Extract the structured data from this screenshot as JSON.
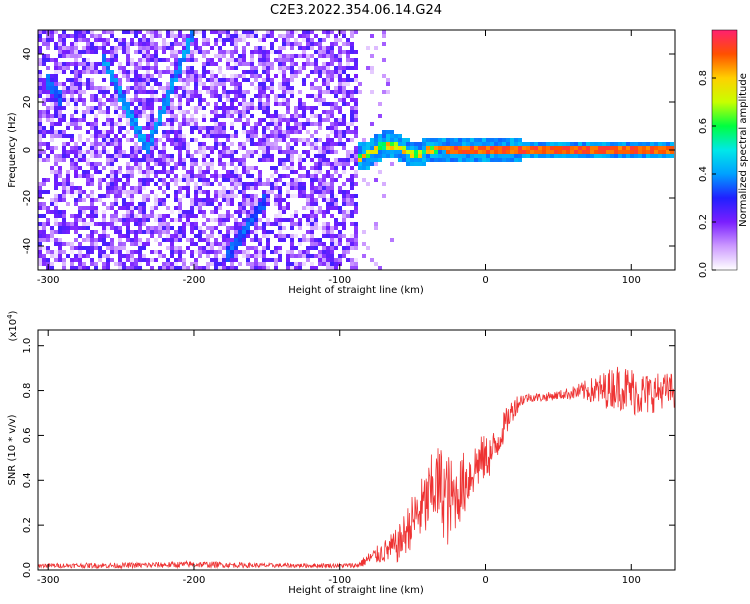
{
  "figure": {
    "title": "C2E3.2022.354.06.14.G24"
  },
  "colors": {
    "snr_line": "#ee3333",
    "axis": "#000000",
    "colormap": [
      "#ffffff",
      "#cc99ff",
      "#7a1fff",
      "#2020ff",
      "#00a0ff",
      "#00e8e8",
      "#00ff40",
      "#c8ff00",
      "#ffd000",
      "#ff5000",
      "#ff2070"
    ]
  },
  "chart_data": [
    {
      "type": "heatmap",
      "xlabel": "Height of straight line (km)",
      "ylabel": "Frequency (Hz)",
      "xlim": [
        -307,
        130
      ],
      "ylim": [
        -50,
        50
      ],
      "xticks": [
        -300,
        -200,
        -100,
        0,
        100
      ],
      "yticks": [
        -40,
        -20,
        0,
        20,
        40
      ],
      "xtick_labels": [
        "-300",
        "-200",
        "-100",
        "0",
        "100"
      ],
      "ytick_labels": [
        "-40",
        "-20",
        "0",
        "20",
        "40"
      ],
      "colorbar": {
        "label": "Normalized spectral amplitude",
        "range": [
          0.0,
          1.0
        ],
        "ticks": [
          0.0,
          0.2,
          0.4,
          0.6,
          0.8
        ],
        "tick_labels": [
          "0.0",
          "0.2",
          "0.4",
          "0.6",
          "0.8"
        ]
      },
      "features": {
        "noise_region_x": [
          -307,
          -88
        ],
        "noise_amplitude": 0.25,
        "line_segments": [
          {
            "x": [
              -262,
              -232
            ],
            "y": [
              38,
              0
            ],
            "amplitude": 0.35
          },
          {
            "x": [
              -232,
              -200
            ],
            "y": [
              0,
              50
            ],
            "amplitude": 0.35
          },
          {
            "x": [
              -178,
              -150
            ],
            "y": [
              -45,
              -20
            ],
            "amplitude": 0.3
          },
          {
            "x": [
              -302,
              -290
            ],
            "y": [
              30,
              20
            ],
            "amplitude": 0.3
          }
        ],
        "signal_band": {
          "x_range": [
            -88,
            130
          ],
          "center_hz": 0,
          "core_amplitude": 0.95,
          "halo_amplitude": 0.35,
          "halo_width_hz": [
            6,
            2.5
          ],
          "start_center_hz": [
            3,
            1
          ]
        }
      }
    },
    {
      "type": "line",
      "xlabel": "Height of straight line (km)",
      "ylabel": "SNR (10 * v/v)",
      "yscale_label": "(x10",
      "yscale_exponent": "4",
      "xlim": [
        -307,
        130
      ],
      "ylim": [
        0,
        1.07
      ],
      "xticks": [
        -300,
        -200,
        -100,
        0,
        100
      ],
      "yticks": [
        0.0,
        0.2,
        0.4,
        0.6,
        0.8,
        1.0
      ],
      "xtick_labels": [
        "-300",
        "-200",
        "-100",
        "0",
        "100"
      ],
      "ytick_labels": [
        "0.0",
        "0.2",
        "0.4",
        "0.6",
        "0.8",
        "1.0"
      ],
      "series": [
        {
          "x": [
            -307,
            -250,
            -200,
            -150,
            -100,
            -88,
            -80,
            -70,
            -60,
            -50,
            -40,
            -35,
            -30,
            -25,
            -20,
            -15,
            -10,
            -5,
            0,
            5,
            10,
            15,
            20,
            25,
            30,
            40,
            50,
            60,
            70,
            80,
            90,
            100,
            110,
            120,
            130
          ],
          "values": [
            0.02,
            0.02,
            0.025,
            0.02,
            0.02,
            0.02,
            0.05,
            0.08,
            0.11,
            0.22,
            0.3,
            0.38,
            0.36,
            0.3,
            0.33,
            0.38,
            0.43,
            0.48,
            0.5,
            0.52,
            0.6,
            0.67,
            0.73,
            0.76,
            0.77,
            0.77,
            0.78,
            0.79,
            0.8,
            0.8,
            0.82,
            0.8,
            0.78,
            0.8,
            0.8
          ],
          "noise": [
            0.01,
            0.012,
            0.015,
            0.01,
            0.01,
            0.012,
            0.03,
            0.05,
            0.08,
            0.12,
            0.16,
            0.18,
            0.2,
            0.22,
            0.14,
            0.15,
            0.12,
            0.12,
            0.1,
            0.1,
            0.08,
            0.06,
            0.05,
            0.03,
            0.02,
            0.02,
            0.02,
            0.03,
            0.05,
            0.08,
            0.1,
            0.11,
            0.1,
            0.08,
            0.08
          ]
        }
      ]
    }
  ]
}
